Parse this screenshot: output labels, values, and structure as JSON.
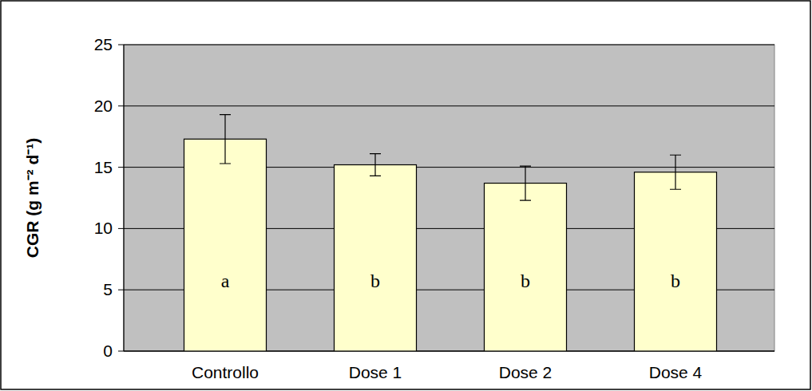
{
  "chart_data": {
    "type": "bar",
    "y_label": "CGR (g m⁻² d⁻¹)",
    "categories": [
      "Controllo",
      "Dose 1",
      "Dose 2",
      "Dose 4"
    ],
    "values": [
      17.3,
      15.2,
      13.7,
      14.6
    ],
    "errors": [
      2.0,
      0.9,
      1.4,
      1.4
    ],
    "annotations": [
      "a",
      "b",
      "b",
      "b"
    ],
    "color": "#ffffcc",
    "ylim": [
      0,
      25
    ],
    "yticks": [
      0,
      5,
      10,
      15,
      20,
      25
    ],
    "grid": true
  }
}
